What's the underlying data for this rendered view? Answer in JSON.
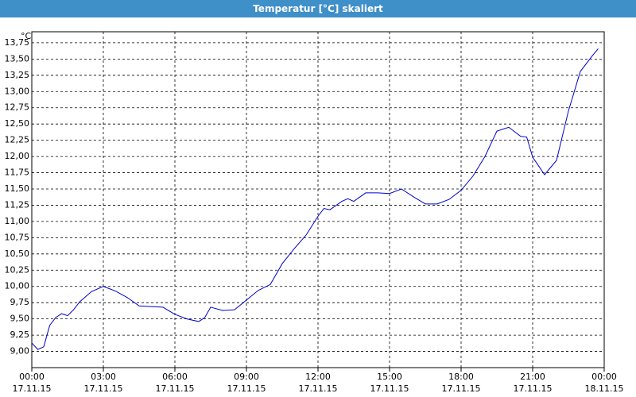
{
  "chart_data": {
    "type": "line",
    "title": "Temperatur [°C] skaliert",
    "y_unit": "°C",
    "x": [
      0,
      0.25,
      0.5,
      0.75,
      1,
      1.25,
      1.5,
      1.75,
      2,
      2.5,
      3,
      3.5,
      4,
      4.5,
      5,
      5.5,
      6,
      6.5,
      7,
      7.25,
      7.5,
      8,
      8.5,
      9,
      9.5,
      10,
      10.5,
      11,
      11.5,
      12,
      12.25,
      12.5,
      13,
      13.25,
      13.5,
      14,
      14.5,
      15,
      15.5,
      16,
      16.5,
      17,
      17.5,
      18,
      18.5,
      19,
      19.5,
      20,
      20.5,
      20.75,
      21,
      21.5,
      22,
      22.5,
      23,
      23.5,
      23.75
    ],
    "series": [
      {
        "name": "Temperatur",
        "color": "#0000cc",
        "values": [
          9.13,
          9.03,
          9.07,
          9.4,
          9.52,
          9.58,
          9.55,
          9.64,
          9.76,
          9.92,
          10.0,
          9.93,
          9.83,
          9.7,
          9.69,
          9.68,
          9.57,
          9.5,
          9.46,
          9.52,
          9.68,
          9.63,
          9.64,
          9.79,
          9.94,
          10.03,
          10.35,
          10.58,
          10.79,
          11.08,
          11.2,
          11.18,
          11.31,
          11.35,
          11.31,
          11.44,
          11.44,
          11.43,
          11.5,
          11.38,
          11.27,
          11.27,
          11.34,
          11.48,
          11.7,
          12.0,
          12.39,
          12.45,
          12.31,
          12.3,
          11.99,
          11.72,
          11.94,
          12.7,
          13.31,
          13.55,
          13.66
        ]
      }
    ],
    "xlim": [
      0,
      24
    ],
    "xticks": [
      {
        "value": 0,
        "label": "00:00"
      },
      {
        "value": 3,
        "label": "03:00"
      },
      {
        "value": 6,
        "label": "06:00"
      },
      {
        "value": 9,
        "label": "09:00"
      },
      {
        "value": 12,
        "label": "12:00"
      },
      {
        "value": 15,
        "label": "15:00"
      },
      {
        "value": 18,
        "label": "18:00"
      },
      {
        "value": 21,
        "label": "21:00"
      },
      {
        "value": 24,
        "label": "00:00"
      }
    ],
    "xtick_dates": [
      "17.11.15",
      "17.11.15",
      "17.11.15",
      "17.11.15",
      "17.11.15",
      "17.11.15",
      "17.11.15",
      "17.11.15",
      "18.11.15"
    ],
    "ylim": [
      8.75,
      13.92
    ],
    "yticks": [
      {
        "value": 9,
        "label": "9,00"
      },
      {
        "value": 9.25,
        "label": "9,25"
      },
      {
        "value": 9.5,
        "label": "9,50"
      },
      {
        "value": 9.75,
        "label": "9,75"
      },
      {
        "value": 10,
        "label": "10,00"
      },
      {
        "value": 10.25,
        "label": "10,25"
      },
      {
        "value": 10.5,
        "label": "10,50"
      },
      {
        "value": 10.75,
        "label": "10,75"
      },
      {
        "value": 11,
        "label": "11,00"
      },
      {
        "value": 11.25,
        "label": "11,25"
      },
      {
        "value": 11.5,
        "label": "11,50"
      },
      {
        "value": 11.75,
        "label": "11,75"
      },
      {
        "value": 12,
        "label": "12,00"
      },
      {
        "value": 12.25,
        "label": "12,25"
      },
      {
        "value": 12.5,
        "label": "12,50"
      },
      {
        "value": 12.75,
        "label": "12,75"
      },
      {
        "value": 13,
        "label": "13,00"
      },
      {
        "value": 13.25,
        "label": "13,25"
      },
      {
        "value": 13.5,
        "label": "13,50"
      },
      {
        "value": 13.75,
        "label": "13,75"
      }
    ],
    "grid": true
  }
}
